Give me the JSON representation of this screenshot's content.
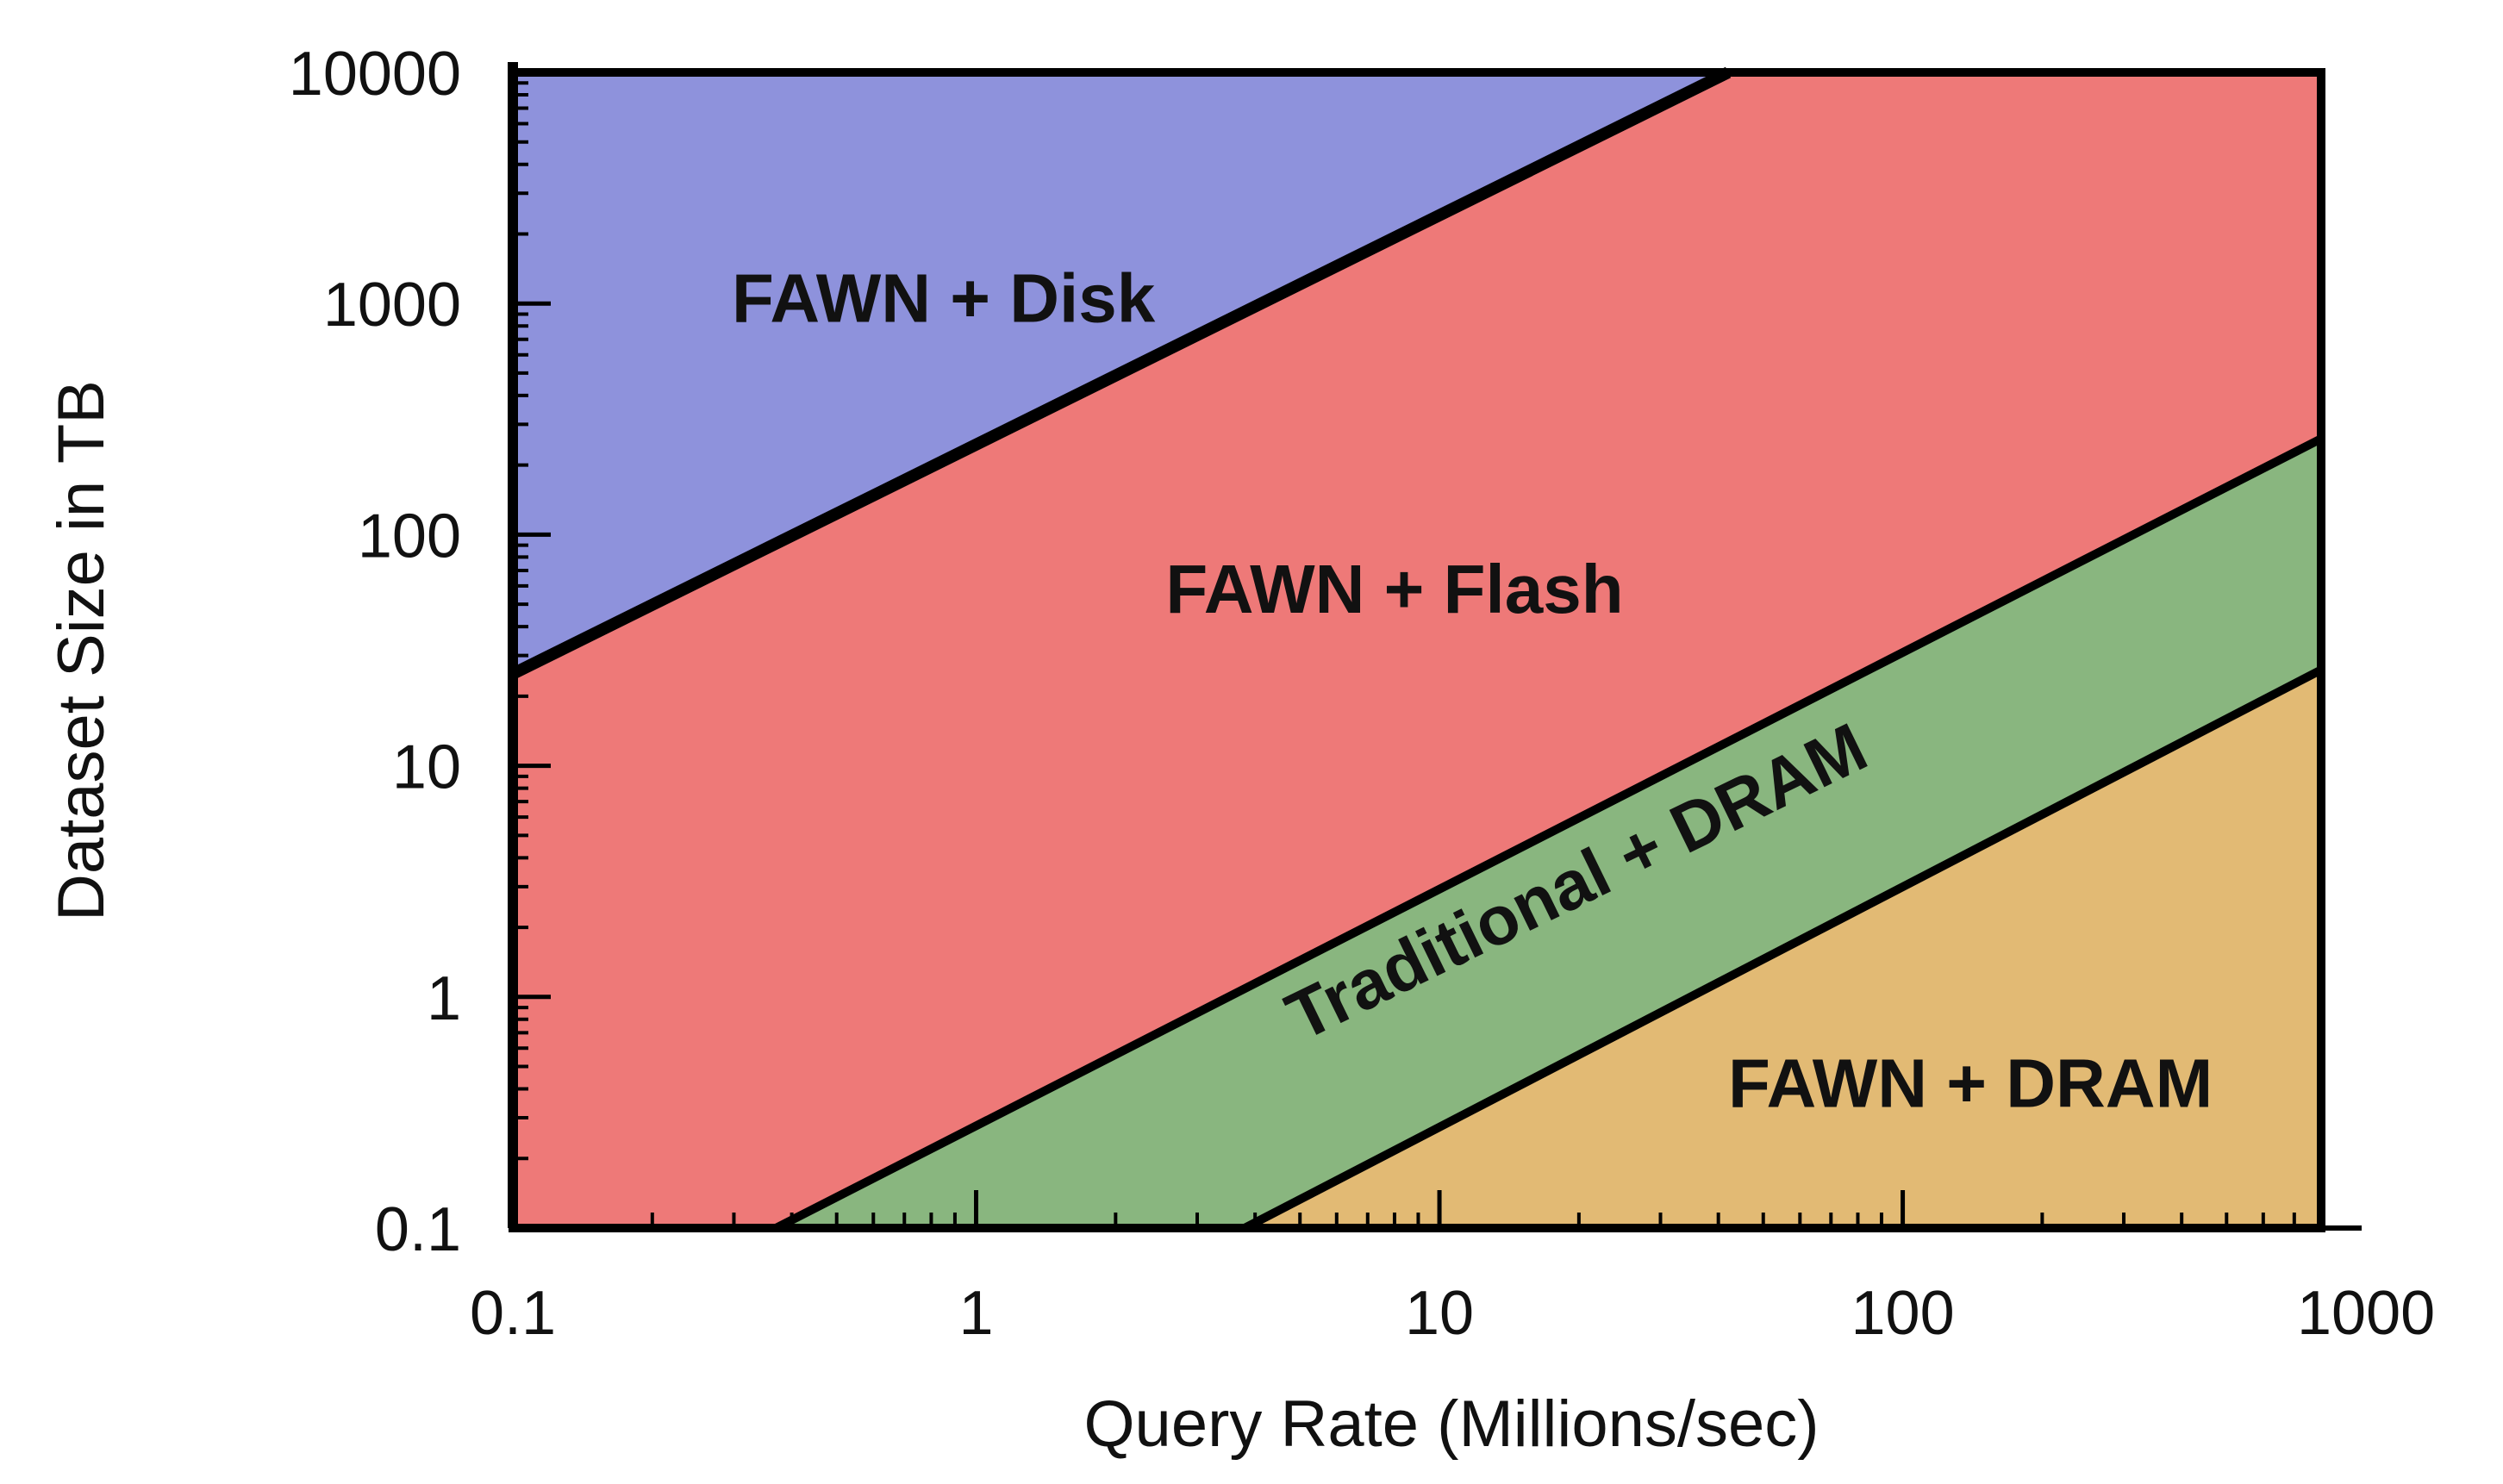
{
  "chart_data": {
    "type": "area",
    "title": "",
    "xlabel": "Query Rate (Millions/sec)",
    "ylabel": "Dataset Size in TB",
    "xscale": "log",
    "yscale": "log",
    "xlim": [
      0.1,
      800
    ],
    "ylim": [
      0.1,
      10000
    ],
    "xticks": [
      0.1,
      1,
      10,
      100,
      1000
    ],
    "xtick_labels": [
      "0.1",
      "1",
      "10",
      "100",
      "1000"
    ],
    "yticks": [
      0.1,
      1,
      10,
      100,
      1000,
      10000
    ],
    "ytick_labels": [
      "0.1",
      "1",
      "10",
      "100",
      "1000",
      "10000"
    ],
    "grid": false,
    "boundaries": [
      {
        "name": "disk-flash",
        "points": [
          [
            0.1,
            25
          ],
          [
            42,
            10000
          ]
        ]
      },
      {
        "name": "flash-traditional-dram",
        "points": [
          [
            0.37,
            0.1
          ],
          [
            800,
            260
          ]
        ]
      },
      {
        "name": "traditional-dram-fawn-dram",
        "points": [
          [
            3.8,
            0.1
          ],
          [
            800,
            26
          ]
        ]
      }
    ],
    "regions": [
      {
        "label": "FAWN + Disk",
        "color": "#8e92dc",
        "polygon": [
          [
            0.1,
            25
          ],
          [
            42,
            10000
          ],
          [
            0.1,
            10000
          ]
        ],
        "label_at": [
          0.85,
          1000
        ],
        "label_angle": 0
      },
      {
        "label": "FAWN + Flash",
        "color": "#ee7978",
        "polygon": [
          [
            0.1,
            0.1
          ],
          [
            0.37,
            0.1
          ],
          [
            800,
            260
          ],
          [
            800,
            10000
          ],
          [
            42,
            10000
          ],
          [
            0.1,
            25
          ]
        ],
        "label_at": [
          8,
          55
        ],
        "label_angle": 0
      },
      {
        "label": "Traditional + DRAM",
        "color": "#89b67f",
        "polygon": [
          [
            0.37,
            0.1
          ],
          [
            3.8,
            0.1
          ],
          [
            800,
            26
          ],
          [
            800,
            260
          ]
        ],
        "label_at": [
          20,
          3
        ],
        "label_angle": -26
      },
      {
        "label": "FAWN + DRAM",
        "color": "#e2ba74",
        "polygon": [
          [
            3.8,
            0.1
          ],
          [
            800,
            0.1
          ],
          [
            800,
            26
          ]
        ],
        "label_at": [
          140,
          0.4
        ],
        "label_angle": 0
      }
    ]
  }
}
